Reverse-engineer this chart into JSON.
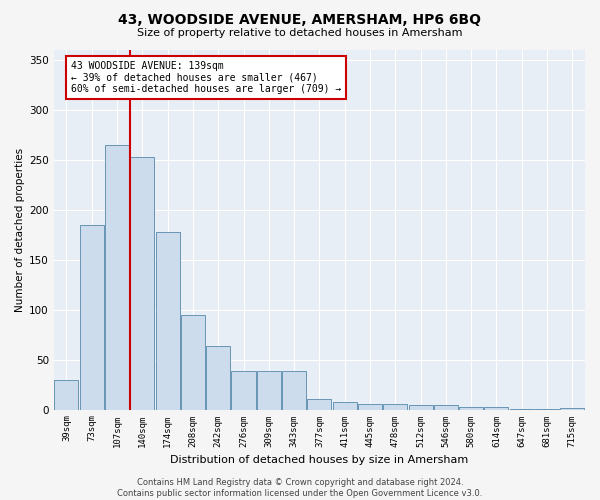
{
  "title": "43, WOODSIDE AVENUE, AMERSHAM, HP6 6BQ",
  "subtitle": "Size of property relative to detached houses in Amersham",
  "xlabel": "Distribution of detached houses by size in Amersham",
  "ylabel": "Number of detached properties",
  "bar_color": "#ccdcec",
  "bar_edge_color": "#5588aa",
  "bg_color": "#e8eef5",
  "fig_bg_color": "#f5f5f5",
  "categories": [
    "39sqm",
    "73sqm",
    "107sqm",
    "140sqm",
    "174sqm",
    "208sqm",
    "242sqm",
    "276sqm",
    "309sqm",
    "343sqm",
    "377sqm",
    "411sqm",
    "445sqm",
    "478sqm",
    "512sqm",
    "546sqm",
    "580sqm",
    "614sqm",
    "647sqm",
    "681sqm",
    "715sqm"
  ],
  "values": [
    30,
    185,
    265,
    253,
    178,
    95,
    64,
    39,
    39,
    39,
    11,
    8,
    6,
    6,
    5,
    5,
    3,
    3,
    1,
    1,
    2
  ],
  "annotation_line1": "43 WOODSIDE AVENUE: 139sqm",
  "annotation_line2": "← 39% of detached houses are smaller (467)",
  "annotation_line3": "60% of semi-detached houses are larger (709) →",
  "annotation_box_color": "#ffffff",
  "annotation_border_color": "#cc0000",
  "vline_color": "#cc0000",
  "ylim": [
    0,
    360
  ],
  "yticks": [
    0,
    50,
    100,
    150,
    200,
    250,
    300,
    350
  ],
  "footer_line1": "Contains HM Land Registry data © Crown copyright and database right 2024.",
  "footer_line2": "Contains public sector information licensed under the Open Government Licence v3.0."
}
